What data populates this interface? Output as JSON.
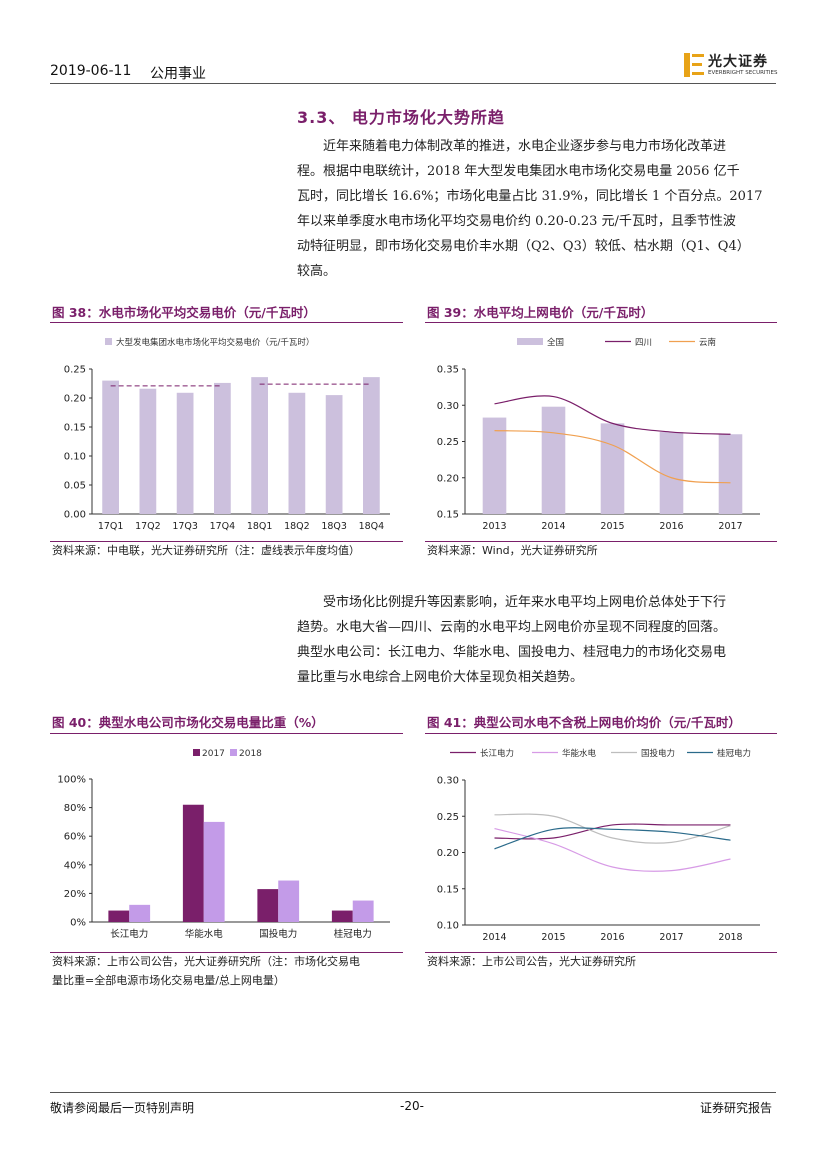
{
  "header": {
    "date": "2019-06-11",
    "sector": "公用事业",
    "logo_text": "光大证券",
    "logo_subtext": "EVERBRIGHT SECURITIES"
  },
  "section": {
    "title": "3.3、 电力市场化大势所趋",
    "para1": [
      "近年来随着电力体制改革的推进，水电企业逐步参与电力市场化改革进",
      "程。根据中电联统计，2018 年大型发电集团水电市场化交易电量 2056 亿千",
      "瓦时，同比增长 16.6%；市场化电量占比 31.9%，同比增长 1 个百分点。2017",
      "年以来单季度水电市场化平均交易电价约 0.20-0.23 元/千瓦时，且季节性波",
      "动特征明显，即市场化交易电价丰水期（Q2、Q3）较低、枯水期（Q1、Q4）",
      "较高。"
    ],
    "para2": [
      "受市场化比例提升等因素影响，近年来水电平均上网电价总体处于下行",
      "趋势。水电大省—四川、云南的水电平均上网电价亦呈现不同程度的回落。",
      "典型水电公司：长江电力、华能水电、国投电力、桂冠电力的市场化交易电",
      "量比重与水电综合上网电价大体呈现负相关趋势。"
    ]
  },
  "figures": {
    "fig38": {
      "title": "图 38：水电市场化平均交易电价（元/千瓦时）",
      "source": "资料来源：中电联，光大证券研究所（注：虚线表示年度均值）"
    },
    "fig39": {
      "title": "图 39：水电平均上网电价（元/千瓦时）",
      "source": "资料来源：Wind，光大证券研究所"
    },
    "fig40": {
      "title": "图 40：典型水电公司市场化交易电量比重（%）",
      "source_line1": "资料来源：上市公司公告，光大证券研究所（注：市场化交易电",
      "source_line2": "量比重=全部电源市场化交易电量/总上网电量）"
    },
    "fig41": {
      "title": "图 41：典型公司水电不含税上网电价均价（元/千瓦时）",
      "source": "资料来源：上市公司公告，光大证券研究所"
    }
  },
  "footer": {
    "left": "敬请参阅最后一页特别声明",
    "center": "-20-",
    "right": "证券研究报告"
  },
  "chart_data": [
    {
      "id": "fig38",
      "type": "bar",
      "categories": [
        "17Q1",
        "17Q2",
        "17Q3",
        "17Q4",
        "18Q1",
        "18Q2",
        "18Q3",
        "18Q4"
      ],
      "series": [
        {
          "name": "大型发电集团水电市场化平均交易电价（元/千瓦时）",
          "values": [
            0.23,
            0.216,
            0.209,
            0.226,
            0.236,
            0.209,
            0.205,
            0.236
          ],
          "color": "#ccc0dd"
        }
      ],
      "annual_average": [
        {
          "categories": [
            "17Q1",
            "17Q4"
          ],
          "value": 0.221
        },
        {
          "categories": [
            "18Q1",
            "18Q4"
          ],
          "value": 0.224
        }
      ],
      "ylim": [
        0,
        0.25
      ],
      "yticks": [
        "0.00",
        "0.05",
        "0.10",
        "0.15",
        "0.20",
        "0.25"
      ],
      "grid": false,
      "legend": "top"
    },
    {
      "id": "fig39",
      "type": "bar",
      "categories": [
        "2013",
        "2014",
        "2015",
        "2016",
        "2017"
      ],
      "series": [
        {
          "name": "全国",
          "type": "bar",
          "values": [
            0.283,
            0.298,
            0.275,
            0.263,
            0.26
          ],
          "color": "#ccc0dd"
        },
        {
          "name": "四川",
          "type": "line",
          "values": [
            0.302,
            0.312,
            0.275,
            0.263,
            0.26
          ],
          "color": "#7a1f6a"
        },
        {
          "name": "云南",
          "type": "line",
          "values": [
            0.265,
            0.262,
            0.245,
            0.2,
            0.193
          ],
          "color": "#f0a050"
        }
      ],
      "ylim": [
        0.15,
        0.35
      ],
      "yticks": [
        "0.15",
        "0.20",
        "0.25",
        "0.30",
        "0.35"
      ],
      "grid": false,
      "legend": "top"
    },
    {
      "id": "fig40",
      "type": "bar",
      "categories": [
        "长江电力",
        "华能水电",
        "国投电力",
        "桂冠电力"
      ],
      "series": [
        {
          "name": "2017",
          "values": [
            8,
            82,
            23,
            8
          ],
          "color": "#7a1f6a"
        },
        {
          "name": "2018",
          "values": [
            12,
            70,
            29,
            15
          ],
          "color": "#c39be8"
        }
      ],
      "ylim": [
        0,
        100
      ],
      "yticks": [
        "0%",
        "20%",
        "40%",
        "60%",
        "80%",
        "100%"
      ],
      "grid": false,
      "legend": "top"
    },
    {
      "id": "fig41",
      "type": "line",
      "categories": [
        "2014",
        "2015",
        "2016",
        "2017",
        "2018"
      ],
      "series": [
        {
          "name": "长江电力",
          "values": [
            0.22,
            0.22,
            0.238,
            0.238,
            0.238
          ],
          "color": "#7a1f6a"
        },
        {
          "name": "华能水电",
          "values": [
            0.233,
            0.212,
            0.18,
            0.175,
            0.191
          ],
          "color": "#d79be6"
        },
        {
          "name": "国投电力",
          "values": [
            0.252,
            0.25,
            0.22,
            0.214,
            0.237
          ],
          "color": "#bdbdbd"
        },
        {
          "name": "桂冠电力",
          "values": [
            0.205,
            0.232,
            0.232,
            0.228,
            0.217
          ],
          "color": "#2a6a8a"
        }
      ],
      "ylim": [
        0.1,
        0.3
      ],
      "yticks": [
        "0.10",
        "0.15",
        "0.20",
        "0.25",
        "0.30"
      ],
      "grid": false,
      "legend": "top"
    }
  ]
}
